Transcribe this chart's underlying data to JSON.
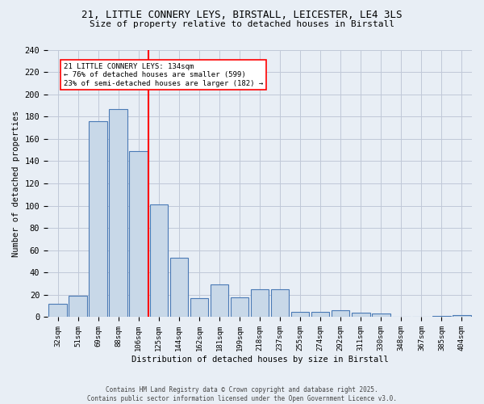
{
  "title1": "21, LITTLE CONNERY LEYS, BIRSTALL, LEICESTER, LE4 3LS",
  "title2": "Size of property relative to detached houses in Birstall",
  "xlabel": "Distribution of detached houses by size in Birstall",
  "ylabel": "Number of detached properties",
  "categories": [
    "32sqm",
    "51sqm",
    "69sqm",
    "88sqm",
    "106sqm",
    "125sqm",
    "144sqm",
    "162sqm",
    "181sqm",
    "199sqm",
    "218sqm",
    "237sqm",
    "255sqm",
    "274sqm",
    "292sqm",
    "311sqm",
    "330sqm",
    "348sqm",
    "367sqm",
    "385sqm",
    "404sqm"
  ],
  "values": [
    12,
    19,
    176,
    187,
    149,
    101,
    53,
    17,
    29,
    18,
    25,
    25,
    5,
    5,
    6,
    4,
    3,
    0,
    0,
    1,
    2
  ],
  "bar_color": "#c8d8e8",
  "bar_edge_color": "#4a7ab5",
  "grid_color": "#c0c8d8",
  "background_color": "#e8eef5",
  "vline_x_index": 5,
  "vline_color": "red",
  "annotation_text": "21 LITTLE CONNERY LEYS: 134sqm\n← 76% of detached houses are smaller (599)\n23% of semi-detached houses are larger (182) →",
  "annotation_box_color": "white",
  "annotation_box_edge_color": "red",
  "footnote": "Contains HM Land Registry data © Crown copyright and database right 2025.\nContains public sector information licensed under the Open Government Licence v3.0.",
  "ylim": [
    0,
    240
  ],
  "yticks": [
    0,
    20,
    40,
    60,
    80,
    100,
    120,
    140,
    160,
    180,
    200,
    220,
    240
  ]
}
